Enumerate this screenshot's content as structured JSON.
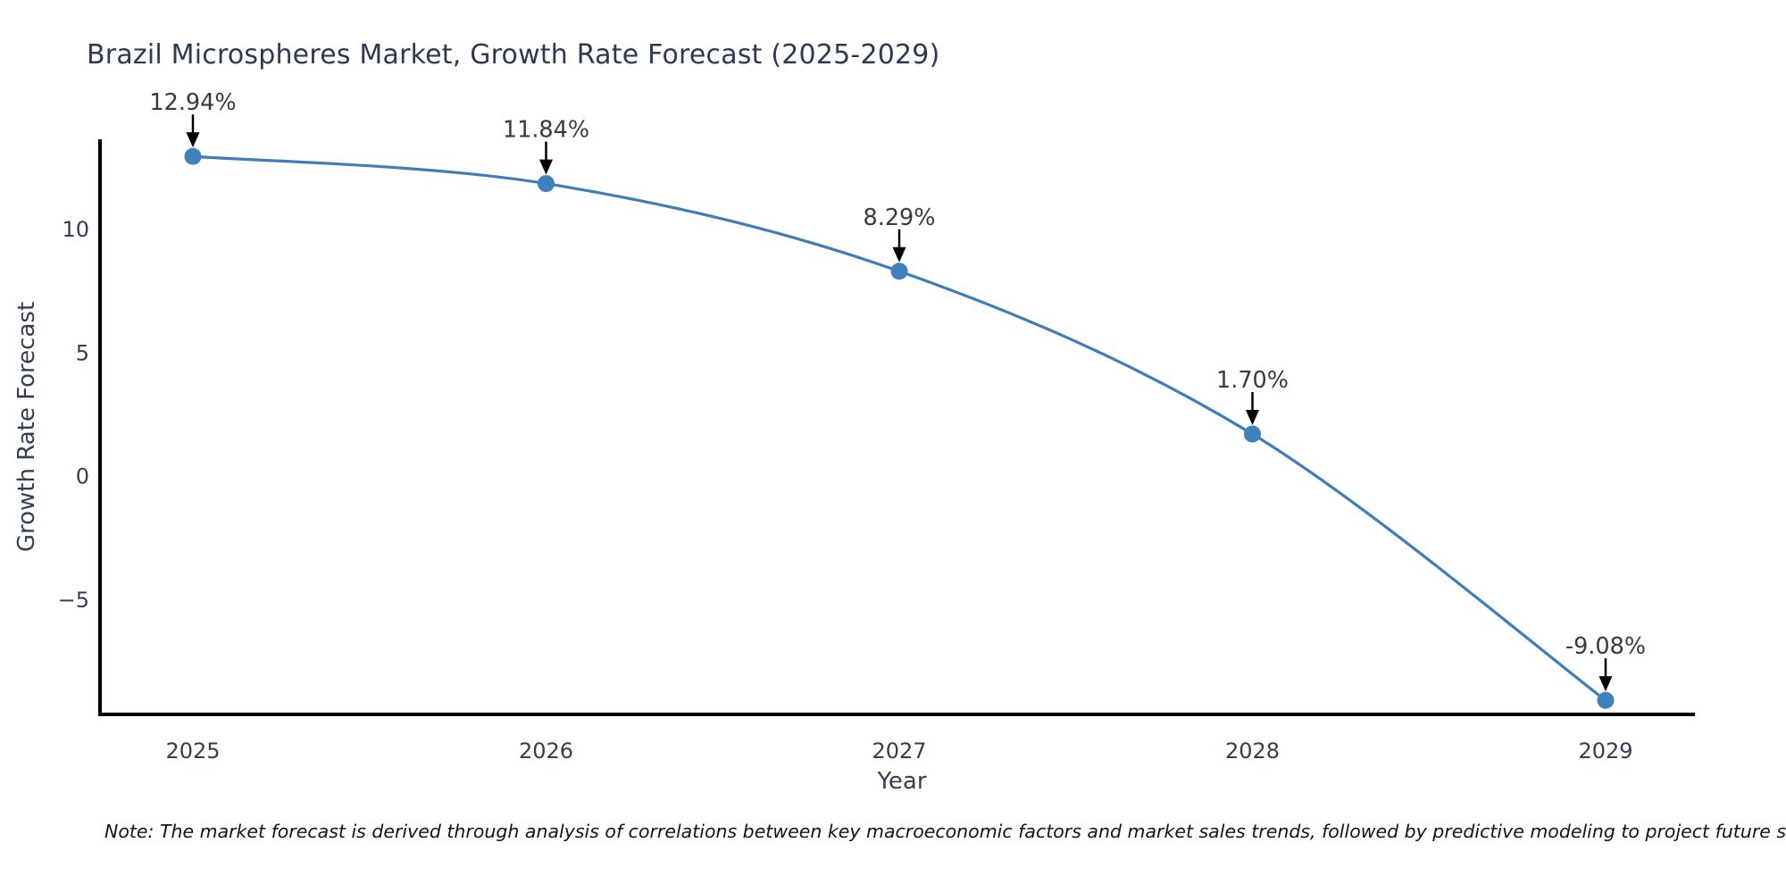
{
  "chart_data": {
    "type": "line",
    "title": "Brazil Microspheres Market, Growth Rate Forecast (2025-2029)",
    "x": [
      "2025",
      "2026",
      "2027",
      "2028",
      "2029"
    ],
    "values": [
      12.94,
      11.84,
      8.29,
      1.7,
      -9.08
    ],
    "point_labels": [
      "12.94%",
      "11.84%",
      "8.29%",
      "1.70%",
      "-9.08%"
    ],
    "xlabel": "Year",
    "ylabel": "Growth Rate Forecast",
    "ytick_values": [
      10,
      5,
      0,
      -5
    ],
    "ytick_labels": [
      "10",
      "5",
      "0",
      "−5"
    ],
    "ylim": [
      -9.65,
      13.56
    ],
    "grid": false,
    "legend": "none",
    "line_color": "#3E7DB9",
    "marker_color": "#3F81BD",
    "annotation_arrow_color": "#000000",
    "axis_color": "#000000",
    "axis_text_color": "#333E51",
    "annotation_text_color": "#3A3A3A"
  },
  "note": "Note: The market forecast is derived through analysis of correlations between key macroeconomic factors and market sales trends, followed by predictive modeling to project future sales"
}
